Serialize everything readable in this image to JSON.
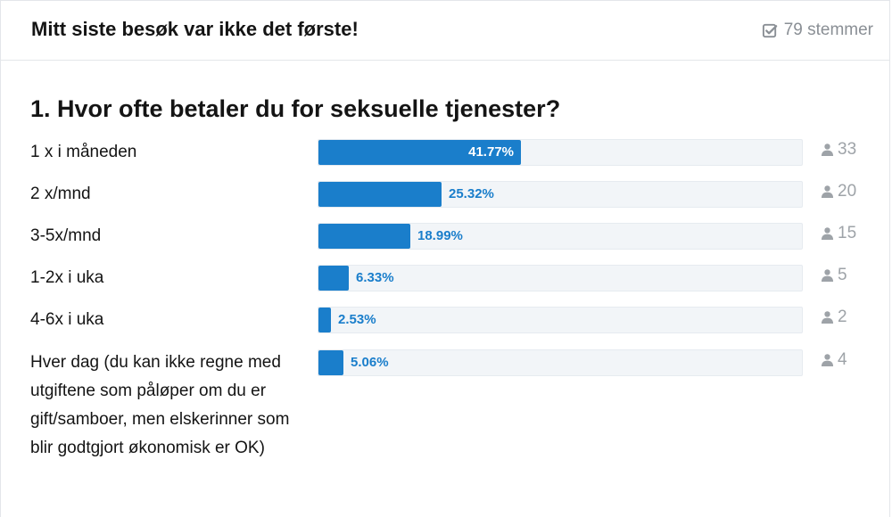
{
  "header": {
    "title": "Mitt siste besøk var ikke det første!",
    "votes_label": "79 stemmer",
    "votes_icon": "check-square-icon"
  },
  "question": {
    "title": "1. Hvor ofte betaler du for seksuelle tjenester?"
  },
  "colors": {
    "bar": "#1a7ecb",
    "track": "#f2f5f8",
    "muted": "#9ea3a8"
  },
  "answers": [
    {
      "label": "1 x i måneden",
      "percent_label": "41.77%",
      "percent": 41.77,
      "count": "33"
    },
    {
      "label": "2 x/mnd",
      "percent_label": "25.32%",
      "percent": 25.32,
      "count": "20"
    },
    {
      "label": "3-5x/mnd",
      "percent_label": "18.99%",
      "percent": 18.99,
      "count": "15"
    },
    {
      "label": "1-2x i uka",
      "percent_label": "6.33%",
      "percent": 6.33,
      "count": "5"
    },
    {
      "label": "4-6x i uka",
      "percent_label": "2.53%",
      "percent": 2.53,
      "count": "2"
    },
    {
      "label": "Hver dag (du kan ikke regne med utgiftene som påløper om du er gift/samboer, men elskerinner som blir godtgjort økonomisk er OK)",
      "percent_label": "5.06%",
      "percent": 5.06,
      "count": "4"
    }
  ]
}
